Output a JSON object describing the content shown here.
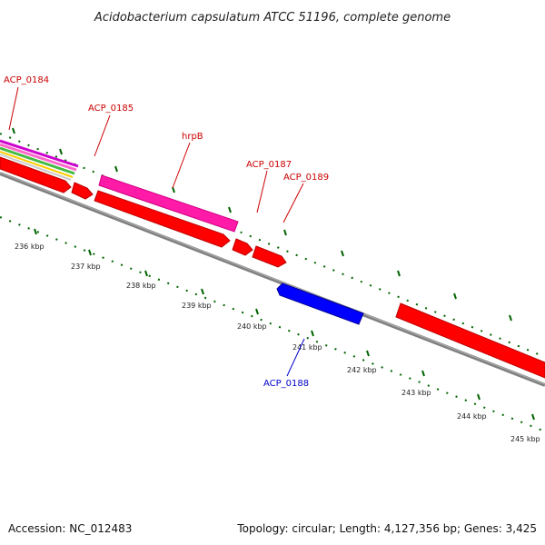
{
  "title": "Acidobacterium capsulatum ATCC 51196, complete genome",
  "footer": {
    "accession": "Accession: NC_012483",
    "summary": "Topology: circular; Length: 4,127,356 bp; Genes: 3,425"
  },
  "colors": {
    "forward_gene": "#ff0000",
    "reverse_gene": "#0000ff",
    "rna_gene": "#ff1aa8",
    "backbone": "#808080",
    "tick": "#006400",
    "label_forward": "#cc0000",
    "label_reverse": "#0000cc"
  },
  "kbp_labels": [
    "236 kbp",
    "237 kbp",
    "238 kbp",
    "239 kbp",
    "240 kbp",
    "241 kbp",
    "242 kbp",
    "243 kbp",
    "244 kbp",
    "245 kbp"
  ],
  "gene_labels": [
    {
      "text": "ACP_0184",
      "strand": "forward"
    },
    {
      "text": "ACP_0185",
      "strand": "forward"
    },
    {
      "text": "hrpB",
      "strand": "forward"
    },
    {
      "text": "ACP_0187",
      "strand": "forward"
    },
    {
      "text": "ACP_0189",
      "strand": "forward"
    },
    {
      "text": "ACP_0188",
      "strand": "reverse"
    }
  ]
}
